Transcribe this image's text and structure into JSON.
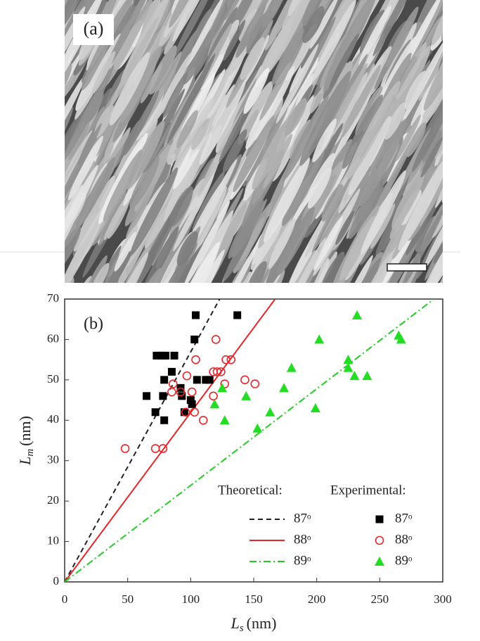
{
  "panel_a": {
    "label": "(a)"
  },
  "chart_data": {
    "type": "scatter",
    "label": "(b)",
    "xlabel": {
      "symbol": "L",
      "subscript": "s",
      "unit": "(nm)"
    },
    "ylabel": {
      "symbol": "L",
      "subscript": "m",
      "unit": "(nm)"
    },
    "xlim": [
      0,
      300
    ],
    "ylim": [
      0,
      70
    ],
    "xticks": [
      0,
      50,
      100,
      150,
      200,
      250,
      300
    ],
    "yticks": [
      0,
      10,
      20,
      30,
      40,
      50,
      60,
      70
    ],
    "legend_groups": [
      "Theoretical:",
      "Experimental:"
    ],
    "lines": [
      {
        "name": "87ᵒ",
        "color": "#222222",
        "dash": "7,5",
        "x": [
          0,
          123
        ],
        "values": [
          0,
          70
        ]
      },
      {
        "name": "88ᵒ",
        "color": "#e8262a",
        "dash": "none",
        "x": [
          0,
          167
        ],
        "values": [
          0,
          70
        ]
      },
      {
        "name": "89ᵒ",
        "color": "#22cc22",
        "dash": "10,4,2,4",
        "x": [
          0,
          293
        ],
        "values": [
          0,
          70
        ]
      }
    ],
    "series": [
      {
        "name": "87ᵒ",
        "color": "#000000",
        "marker": "square",
        "x": [
          104,
          137,
          103,
          73,
          77,
          80,
          87,
          85,
          65,
          72,
          79,
          78,
          79,
          92,
          93,
          95,
          100,
          101,
          105,
          112,
          115
        ],
        "values": [
          66,
          66,
          60,
          56,
          56,
          56,
          56,
          52,
          46,
          42,
          40,
          46,
          50,
          48,
          46,
          42,
          45,
          44,
          50,
          50,
          50
        ]
      },
      {
        "name": "88ᵒ",
        "color": "#e8262a",
        "marker": "circle",
        "x": [
          48,
          72,
          78,
          86,
          85,
          92,
          97,
          101,
          104,
          120,
          118,
          121,
          124,
          128,
          132,
          127,
          118,
          110,
          96,
          103,
          143,
          151
        ],
        "values": [
          33,
          33,
          33,
          49,
          47,
          47,
          51,
          47,
          55,
          60,
          52,
          52,
          52,
          55,
          55,
          49,
          46,
          40,
          42,
          42,
          50,
          49
        ]
      },
      {
        "name": "89ᵒ",
        "color": "#22dd22",
        "marker": "triangle",
        "x": [
          232,
          265,
          267,
          202,
          225,
          225,
          230,
          240,
          180,
          174,
          125,
          144,
          119,
          127,
          153,
          163,
          199
        ],
        "values": [
          66,
          61,
          60,
          60,
          55,
          53,
          51,
          51,
          53,
          48,
          48,
          46,
          44,
          40,
          38,
          42,
          43
        ]
      }
    ]
  }
}
